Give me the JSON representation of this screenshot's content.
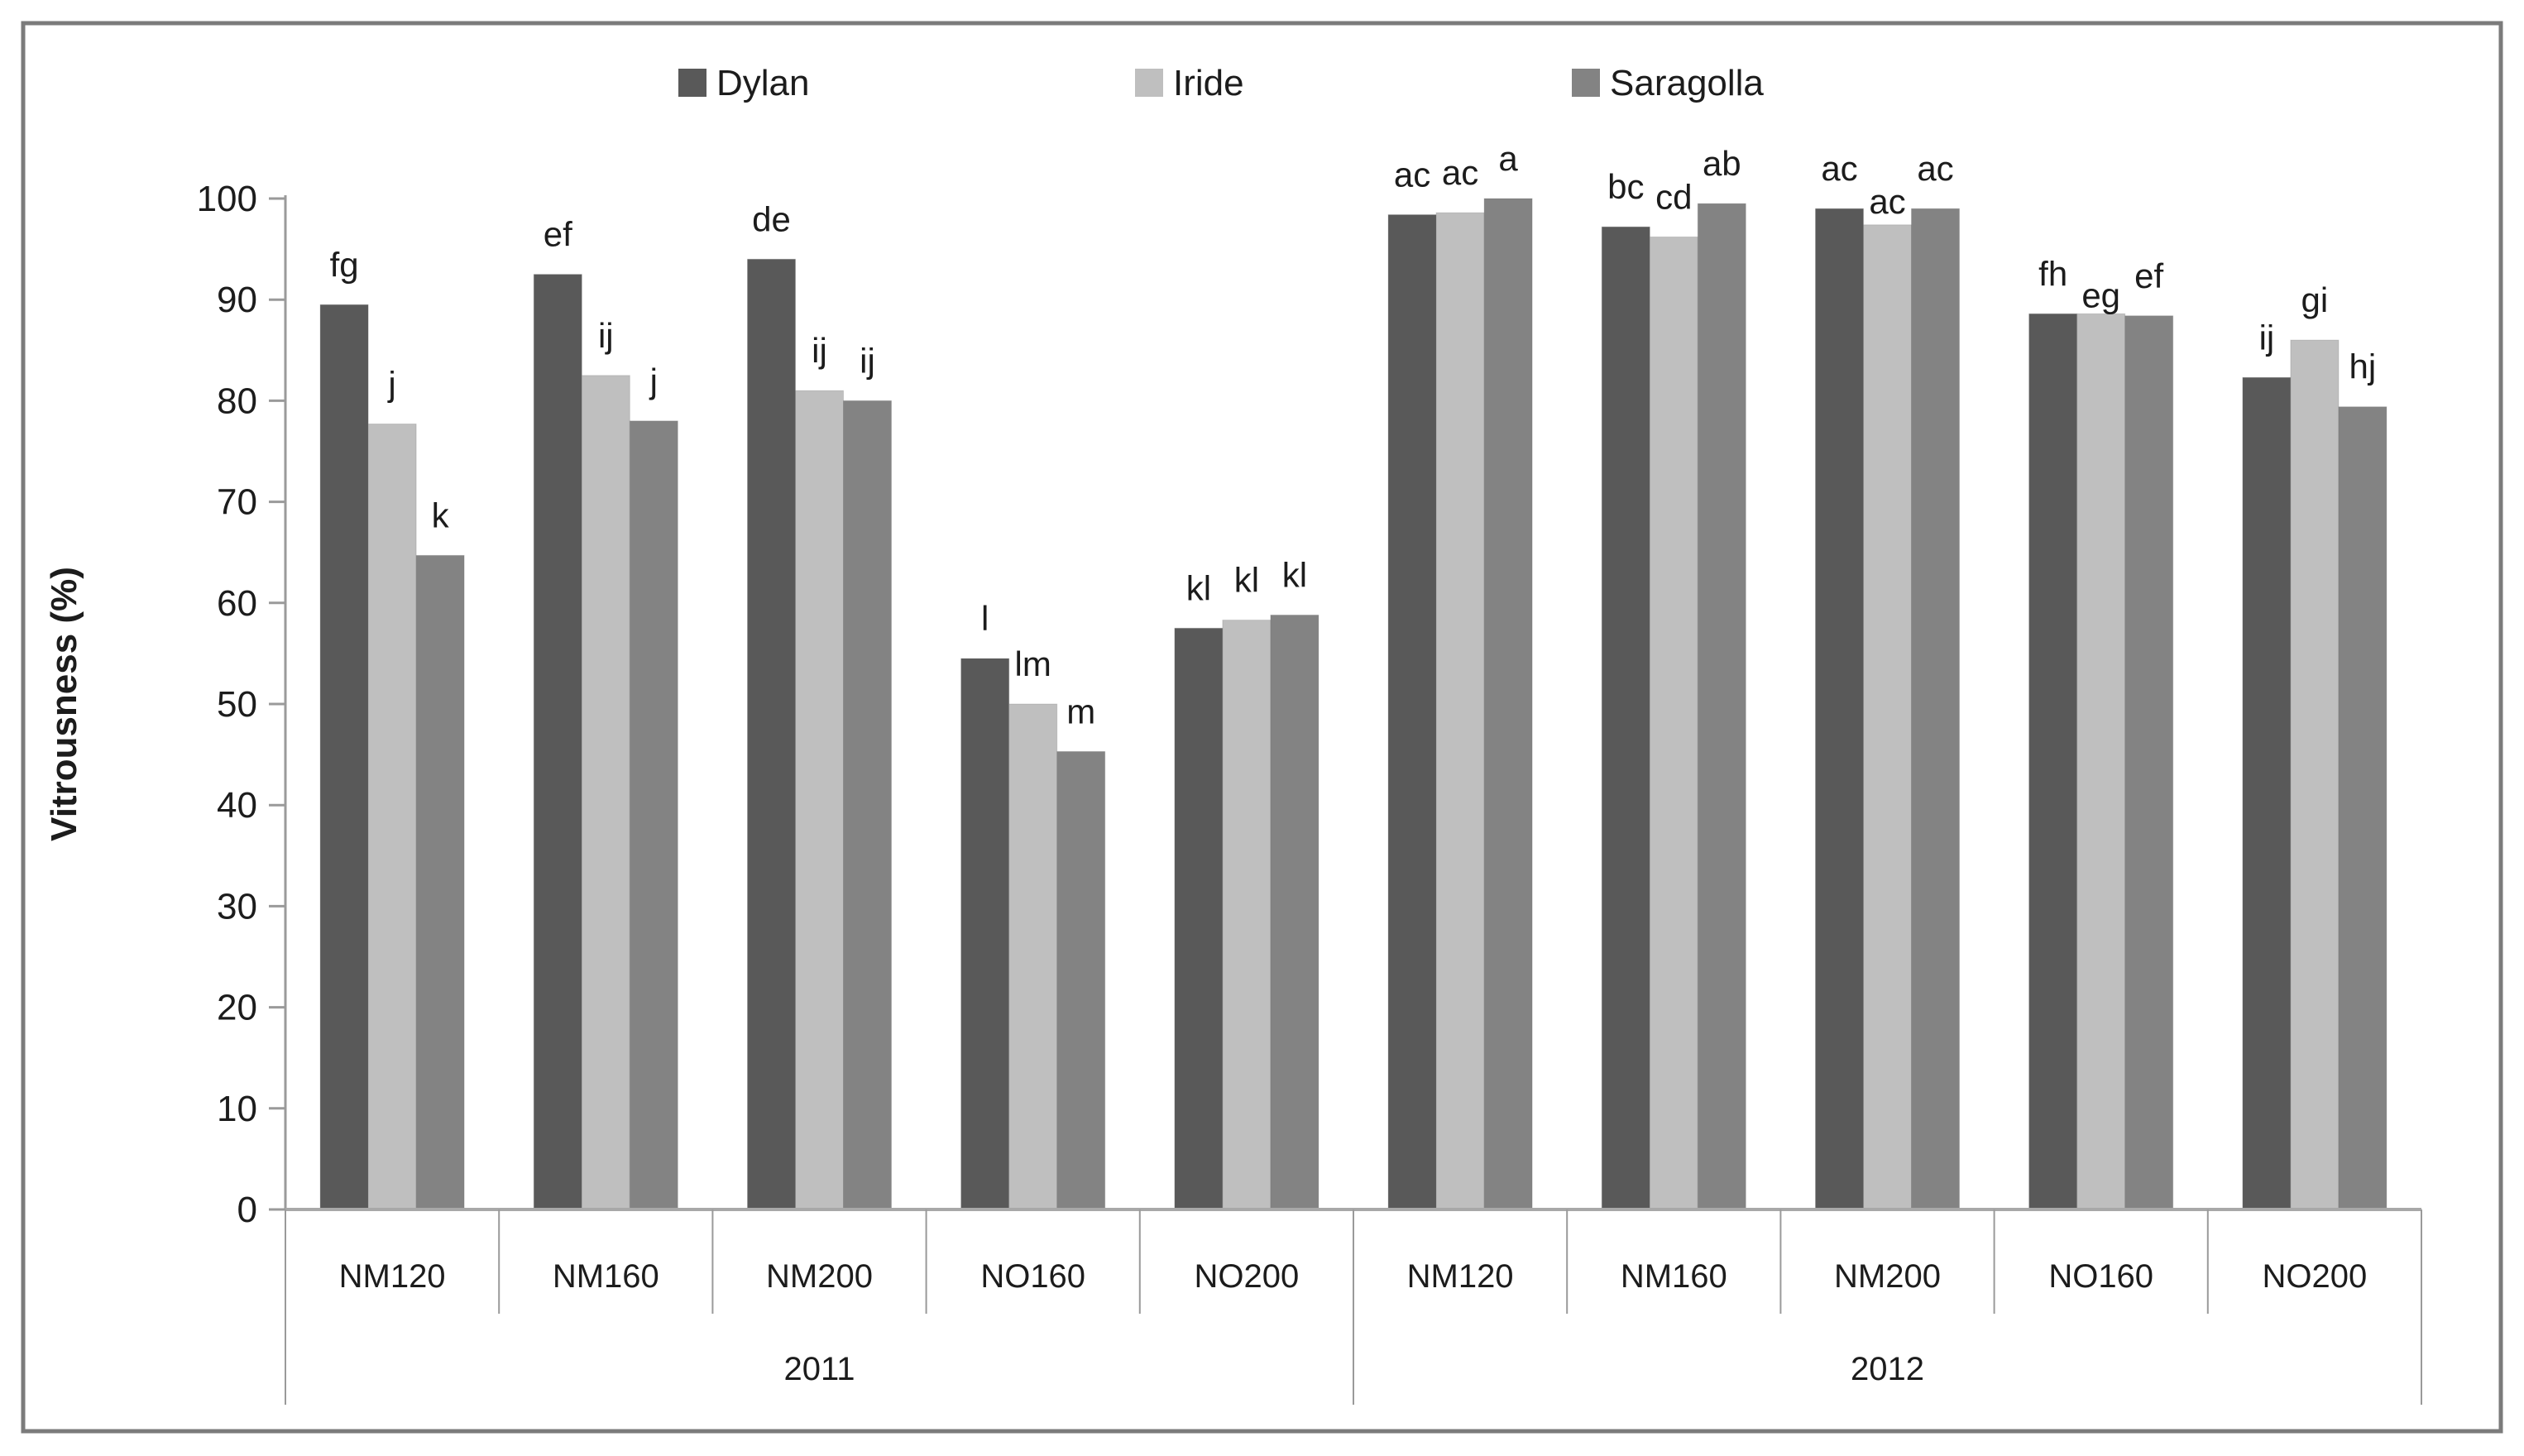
{
  "chart_data": {
    "type": "bar",
    "title": "",
    "ylabel": "Vitrousness (%)",
    "ylim": [
      0,
      100
    ],
    "ytick_step": 10,
    "grid": false,
    "legend_position": "top",
    "axis_color": "#9a9a9a",
    "frame_color": "#7b7b7b",
    "series": [
      {
        "name": "Dylan",
        "color": "#595959"
      },
      {
        "name": "Iride",
        "color": "#bfbfbf"
      },
      {
        "name": "Saragolla",
        "color": "#838383"
      }
    ],
    "year_labels": [
      "2011",
      "2012"
    ],
    "groups": [
      {
        "year": "2011",
        "treatment": "NM120",
        "values": [
          89.5,
          77.7,
          64.7
        ],
        "letters": [
          "fg",
          "j",
          "k"
        ]
      },
      {
        "year": "2011",
        "treatment": "NM160",
        "values": [
          92.5,
          82.5,
          78.0
        ],
        "letters": [
          "ef",
          "ij",
          "j"
        ]
      },
      {
        "year": "2011",
        "treatment": "NM200",
        "values": [
          94.0,
          81.0,
          80.0
        ],
        "letters": [
          "de",
          "ij",
          "ij"
        ]
      },
      {
        "year": "2011",
        "treatment": "NO160",
        "values": [
          54.5,
          50.0,
          45.3
        ],
        "letters": [
          "l",
          "lm",
          "m"
        ]
      },
      {
        "year": "2011",
        "treatment": "NO200",
        "values": [
          57.5,
          58.3,
          58.8
        ],
        "letters": [
          "kl",
          "kl",
          "kl"
        ]
      },
      {
        "year": "2012",
        "treatment": "NM120",
        "values": [
          98.4,
          98.6,
          100.0
        ],
        "letters": [
          "ac",
          "ac",
          "a"
        ]
      },
      {
        "year": "2012",
        "treatment": "NM160",
        "values": [
          97.2,
          96.2,
          99.5
        ],
        "letters": [
          "bc",
          "cd",
          "ab"
        ]
      },
      {
        "year": "2012",
        "treatment": "NM200",
        "values": [
          99.0,
          97.4,
          99.0
        ],
        "letters": [
          "ac",
          "ac",
          "ac"
        ]
      },
      {
        "year": "2012",
        "treatment": "NO160",
        "values": [
          88.6,
          88.6,
          88.4
        ],
        "letters": [
          "fh",
          "eg",
          "ef"
        ]
      },
      {
        "year": "2012",
        "treatment": "NO200",
        "values": [
          82.3,
          86.0,
          79.4
        ],
        "letters": [
          "ij",
          "gi",
          "hj"
        ]
      }
    ]
  }
}
